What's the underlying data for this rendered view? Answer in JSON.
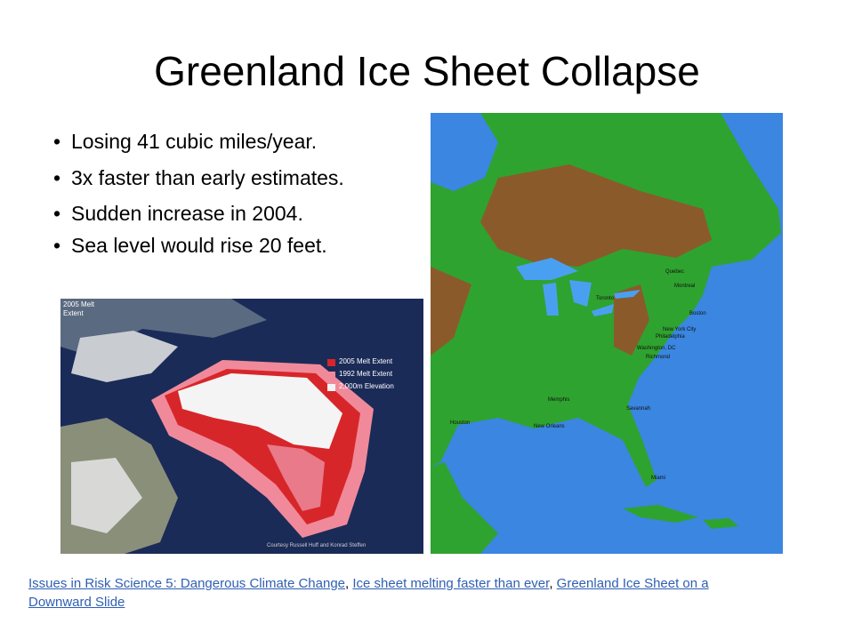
{
  "header": {
    "title": "Greenland Ice Sheet Collapse"
  },
  "bullets": [
    "Losing 41 cubic miles/year.",
    "3x faster than early estimates.",
    "Sudden increase in 2004.",
    "Sea level would rise 20 feet."
  ],
  "greenland_image": {
    "caption": "2005 Melt\nExtent",
    "legend": [
      "2005 Melt Extent",
      "1992 Melt Extent",
      "2,000m Elevation"
    ],
    "credit": "Courtesy Russell Huff and Konrad Steffen"
  },
  "map_image": {
    "labels": [
      "Quebec",
      "Montreal",
      "Toronto",
      "Boston",
      "New York City",
      "Philadelphia",
      "Washington, DC",
      "Richmond",
      "Memphis",
      "Savannah",
      "Houston",
      "New Orleans",
      "Miami"
    ]
  },
  "footer": {
    "links": [
      "Issues in Risk Science 5: Dangerous Climate Change",
      "Ice sheet melting faster than ever",
      "Greenland Ice Sheet on a Downward Slide"
    ],
    "separator": ", "
  }
}
